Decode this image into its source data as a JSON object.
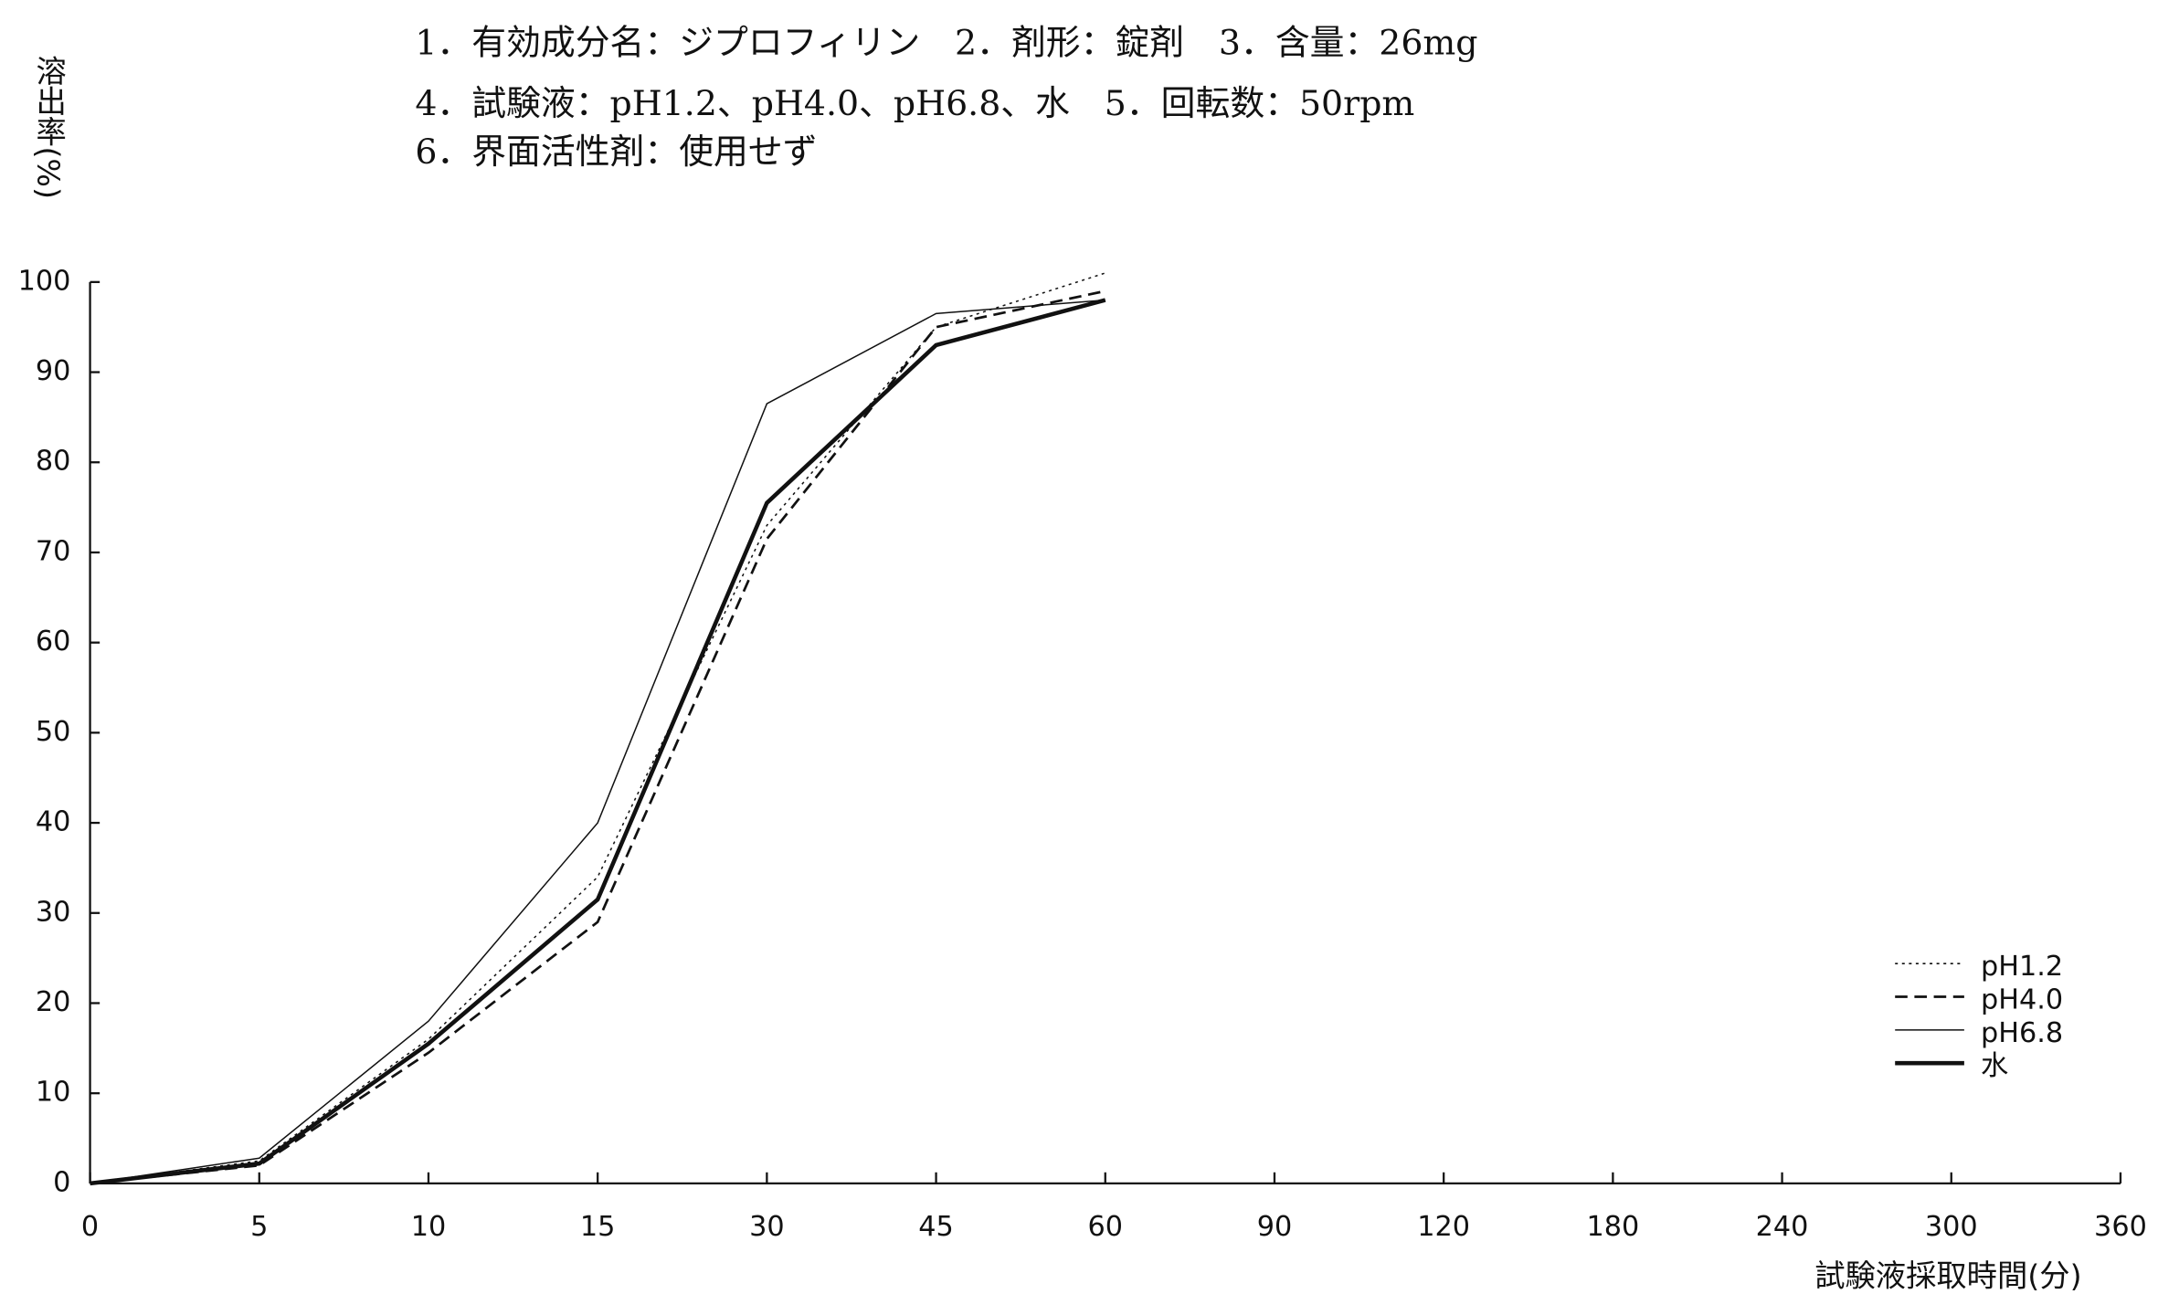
{
  "chart_data": {
    "type": "line",
    "annotations": [
      "1．有効成分名：ジプロフィリン　2．剤形：錠剤　3．含量：26mg",
      "4．試験液：pH1.2、pH4.0、pH6.8、水　5．回転数：50rpm",
      "6．界面活性剤：使用せず"
    ],
    "y_label": "溶出率(%)",
    "x_label": "試験液採取時間(分)",
    "categories": [
      "0",
      "5",
      "10",
      "15",
      "30",
      "45",
      "60",
      "90",
      "120",
      "180",
      "240",
      "300",
      "360"
    ],
    "series": [
      {
        "name": "pH1.2",
        "color": "#111111",
        "dash": "dotted",
        "width": 1,
        "values": [
          0,
          2.5,
          16,
          34,
          73,
          95,
          101,
          null,
          null,
          null,
          null,
          null,
          null
        ]
      },
      {
        "name": "pH4.0",
        "color": "#111111",
        "dash": "dashed",
        "width": 1.8,
        "values": [
          0,
          2,
          14.5,
          29,
          71.5,
          95,
          99,
          null,
          null,
          null,
          null,
          null,
          null
        ]
      },
      {
        "name": "pH6.8",
        "color": "#111111",
        "dash": "solid",
        "width": 1,
        "values": [
          0,
          2.8,
          18,
          40,
          86.5,
          96.5,
          98,
          null,
          null,
          null,
          null,
          null,
          null
        ]
      },
      {
        "name": "水",
        "color": "#111111",
        "dash": "solid",
        "width": 3,
        "values": [
          0,
          2.2,
          15.5,
          31.5,
          75.5,
          93,
          98,
          null,
          null,
          null,
          null,
          null,
          null
        ]
      }
    ],
    "ylim": [
      0,
      100
    ],
    "yticks": [
      0,
      10,
      20,
      30,
      40,
      50,
      60,
      70,
      80,
      90,
      100
    ],
    "legend": "lower right"
  }
}
